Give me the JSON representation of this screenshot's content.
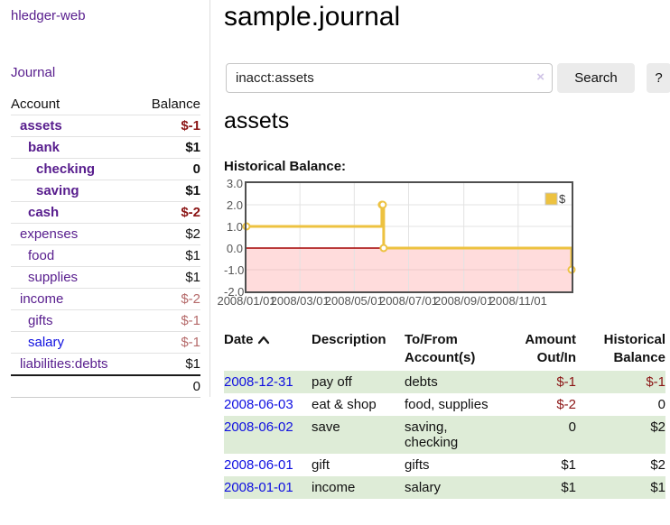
{
  "sidebar": {
    "brand": "hledger-web",
    "journal_label": "Journal",
    "accounts_table": {
      "headers": {
        "account": "Account",
        "balance": "Balance"
      },
      "rows": [
        {
          "name": "assets",
          "level": 1,
          "bold": true,
          "link": "purple",
          "balance": "$-1",
          "tone": "neg-strong"
        },
        {
          "name": "bank",
          "level": 2,
          "bold": true,
          "link": "purple",
          "balance": "$1",
          "tone": "pos"
        },
        {
          "name": "checking",
          "level": 3,
          "bold": true,
          "link": "purple",
          "balance": "0",
          "tone": "pos"
        },
        {
          "name": "saving",
          "level": 3,
          "bold": true,
          "link": "purple",
          "balance": "$1",
          "tone": "pos"
        },
        {
          "name": "cash",
          "level": 2,
          "bold": true,
          "link": "purple",
          "balance": "$-2",
          "tone": "neg-strong"
        },
        {
          "name": "expenses",
          "level": 1,
          "bold": false,
          "link": "purple",
          "balance": "$2",
          "tone": "pos"
        },
        {
          "name": "food",
          "level": 2,
          "bold": false,
          "link": "purple",
          "balance": "$1",
          "tone": "pos"
        },
        {
          "name": "supplies",
          "level": 2,
          "bold": false,
          "link": "purple",
          "balance": "$1",
          "tone": "pos"
        },
        {
          "name": "income",
          "level": 1,
          "bold": false,
          "link": "purple",
          "balance": "$-2",
          "tone": "neg-soft"
        },
        {
          "name": "gifts",
          "level": 2,
          "bold": false,
          "link": "purple",
          "balance": "$-1",
          "tone": "neg-soft"
        },
        {
          "name": "salary",
          "level": 2,
          "bold": false,
          "link": "blue",
          "balance": "$-1",
          "tone": "neg-soft"
        },
        {
          "name": "liabilities:debts",
          "level": 1,
          "bold": false,
          "link": "purple",
          "balance": "$1",
          "tone": "pos"
        }
      ],
      "total": "0"
    }
  },
  "main": {
    "title": "sample.journal",
    "search": {
      "value": "inacct:assets",
      "clear_icon": "×",
      "button_label": "Search",
      "help_label": "?"
    },
    "account_heading": "assets",
    "chart_label": "Historical Balance:"
  },
  "chart_data": {
    "type": "line",
    "step": true,
    "title": "Historical Balance",
    "series": [
      {
        "name": "$",
        "color": "#edc240",
        "points": [
          {
            "date": "2008-01-01",
            "value": 1
          },
          {
            "date": "2008-06-01",
            "value": 2
          },
          {
            "date": "2008-06-02",
            "value": 2
          },
          {
            "date": "2008-06-03",
            "value": 0
          },
          {
            "date": "2008-12-31",
            "value": -1
          }
        ]
      }
    ],
    "x_range": [
      "2008-01-01",
      "2008-12-31"
    ],
    "x_tick_dates": [
      "2008-01-01",
      "2008-03-01",
      "2008-05-01",
      "2008-07-01",
      "2008-09-01",
      "2008-11-01"
    ],
    "x_tick_labels": [
      "2008/01/01",
      "2008/03/01",
      "2008/05/01",
      "2008/07/01",
      "2008/09/01",
      "2008/11/01"
    ],
    "ylim": [
      -2,
      3
    ],
    "y_ticks": [
      3,
      2,
      1,
      0,
      -1,
      -2
    ],
    "y_tick_labels": [
      "3.0",
      "2.0",
      "1.0",
      "0.0",
      "-1.0",
      "-2.0"
    ],
    "legend": {
      "label": "$",
      "position": "top-right"
    },
    "grid": true,
    "negative_region_color": "#ffdcdc",
    "zero_line_color": "#a40000",
    "border_color": "#4f4f4f"
  },
  "register_table": {
    "headers": {
      "date": "Date",
      "description": "Description",
      "accounts": "To/From Account(s)",
      "amount": "Amount Out/In",
      "balance": "Historical Balance"
    },
    "sort": {
      "column": "date",
      "direction": "ascending"
    },
    "rows": [
      {
        "date": "2008-12-31",
        "description": "pay off",
        "accounts": "debts",
        "amount": "$-1",
        "amount_neg": true,
        "balance": "$-1",
        "balance_neg": true,
        "shaded": true
      },
      {
        "date": "2008-06-03",
        "description": "eat & shop",
        "accounts": "food, supplies",
        "amount": "$-2",
        "amount_neg": true,
        "balance": "0",
        "balance_neg": false,
        "shaded": false
      },
      {
        "date": "2008-06-02",
        "description": "save",
        "accounts": "saving, checking",
        "amount": "0",
        "amount_neg": false,
        "balance": "$2",
        "balance_neg": false,
        "shaded": true
      },
      {
        "date": "2008-06-01",
        "description": "gift",
        "accounts": "gifts",
        "amount": "$1",
        "amount_neg": false,
        "balance": "$2",
        "balance_neg": false,
        "shaded": false
      },
      {
        "date": "2008-01-01",
        "description": "income",
        "accounts": "salary",
        "amount": "$1",
        "amount_neg": false,
        "balance": "$1",
        "balance_neg": false,
        "shaded": true
      }
    ]
  }
}
